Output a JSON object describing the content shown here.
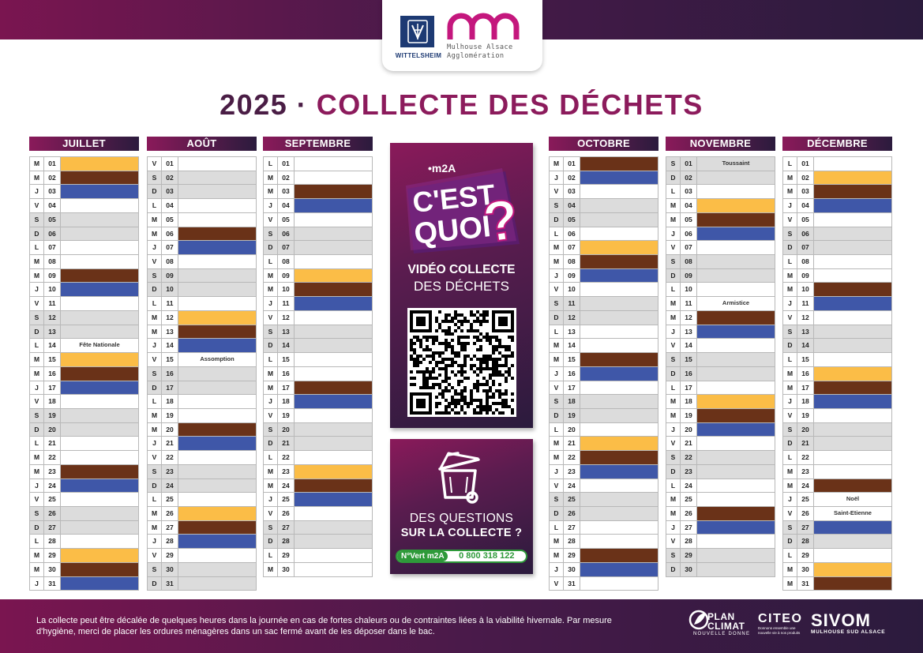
{
  "header": {
    "wittelsheim": "WITTELSHEIM",
    "m2a_line1": "Mulhouse Alsace",
    "m2a_line2": "Agglomération"
  },
  "title": {
    "year": "2025",
    "separator": "·",
    "main": "COLLECTE DES DÉCHETS"
  },
  "legend_colors": {
    "yellow": "#fbbd47",
    "brown": "#6a3218",
    "blue": "#3f57a8",
    "weekend": "#dcdcdc"
  },
  "months": [
    {
      "name": "JUILLET",
      "days": [
        {
          "d": "M",
          "n": "01",
          "c": "y"
        },
        {
          "d": "M",
          "n": "02",
          "c": "b"
        },
        {
          "d": "J",
          "n": "03",
          "c": "u"
        },
        {
          "d": "V",
          "n": "04"
        },
        {
          "d": "S",
          "n": "05"
        },
        {
          "d": "D",
          "n": "06"
        },
        {
          "d": "L",
          "n": "07"
        },
        {
          "d": "M",
          "n": "08"
        },
        {
          "d": "M",
          "n": "09",
          "c": "b"
        },
        {
          "d": "J",
          "n": "10",
          "c": "u"
        },
        {
          "d": "V",
          "n": "11"
        },
        {
          "d": "S",
          "n": "12"
        },
        {
          "d": "D",
          "n": "13"
        },
        {
          "d": "L",
          "n": "14",
          "t": "Fête Nationale"
        },
        {
          "d": "M",
          "n": "15",
          "c": "y"
        },
        {
          "d": "M",
          "n": "16",
          "c": "b"
        },
        {
          "d": "J",
          "n": "17",
          "c": "u"
        },
        {
          "d": "V",
          "n": "18"
        },
        {
          "d": "S",
          "n": "19"
        },
        {
          "d": "D",
          "n": "20"
        },
        {
          "d": "L",
          "n": "21"
        },
        {
          "d": "M",
          "n": "22"
        },
        {
          "d": "M",
          "n": "23",
          "c": "b"
        },
        {
          "d": "J",
          "n": "24",
          "c": "u"
        },
        {
          "d": "V",
          "n": "25"
        },
        {
          "d": "S",
          "n": "26"
        },
        {
          "d": "D",
          "n": "27"
        },
        {
          "d": "L",
          "n": "28"
        },
        {
          "d": "M",
          "n": "29",
          "c": "y"
        },
        {
          "d": "M",
          "n": "30",
          "c": "b"
        },
        {
          "d": "J",
          "n": "31",
          "c": "u"
        }
      ]
    },
    {
      "name": "AOÛT",
      "days": [
        {
          "d": "V",
          "n": "01"
        },
        {
          "d": "S",
          "n": "02"
        },
        {
          "d": "D",
          "n": "03"
        },
        {
          "d": "L",
          "n": "04"
        },
        {
          "d": "M",
          "n": "05"
        },
        {
          "d": "M",
          "n": "06",
          "c": "b"
        },
        {
          "d": "J",
          "n": "07",
          "c": "u"
        },
        {
          "d": "V",
          "n": "08"
        },
        {
          "d": "S",
          "n": "09"
        },
        {
          "d": "D",
          "n": "10"
        },
        {
          "d": "L",
          "n": "11"
        },
        {
          "d": "M",
          "n": "12",
          "c": "y"
        },
        {
          "d": "M",
          "n": "13",
          "c": "b"
        },
        {
          "d": "J",
          "n": "14",
          "c": "u"
        },
        {
          "d": "V",
          "n": "15",
          "t": "Assomption"
        },
        {
          "d": "S",
          "n": "16"
        },
        {
          "d": "D",
          "n": "17"
        },
        {
          "d": "L",
          "n": "18"
        },
        {
          "d": "M",
          "n": "19"
        },
        {
          "d": "M",
          "n": "20",
          "c": "b"
        },
        {
          "d": "J",
          "n": "21",
          "c": "u"
        },
        {
          "d": "V",
          "n": "22"
        },
        {
          "d": "S",
          "n": "23"
        },
        {
          "d": "D",
          "n": "24"
        },
        {
          "d": "L",
          "n": "25"
        },
        {
          "d": "M",
          "n": "26",
          "c": "y"
        },
        {
          "d": "M",
          "n": "27",
          "c": "b"
        },
        {
          "d": "J",
          "n": "28",
          "c": "u"
        },
        {
          "d": "V",
          "n": "29"
        },
        {
          "d": "S",
          "n": "30"
        },
        {
          "d": "D",
          "n": "31"
        }
      ]
    },
    {
      "name": "SEPTEMBRE",
      "days": [
        {
          "d": "L",
          "n": "01"
        },
        {
          "d": "M",
          "n": "02"
        },
        {
          "d": "M",
          "n": "03",
          "c": "b"
        },
        {
          "d": "J",
          "n": "04",
          "c": "u"
        },
        {
          "d": "V",
          "n": "05"
        },
        {
          "d": "S",
          "n": "06"
        },
        {
          "d": "D",
          "n": "07"
        },
        {
          "d": "L",
          "n": "08"
        },
        {
          "d": "M",
          "n": "09",
          "c": "y"
        },
        {
          "d": "M",
          "n": "10",
          "c": "b"
        },
        {
          "d": "J",
          "n": "11",
          "c": "u"
        },
        {
          "d": "V",
          "n": "12"
        },
        {
          "d": "S",
          "n": "13"
        },
        {
          "d": "D",
          "n": "14"
        },
        {
          "d": "L",
          "n": "15"
        },
        {
          "d": "M",
          "n": "16"
        },
        {
          "d": "M",
          "n": "17",
          "c": "b"
        },
        {
          "d": "J",
          "n": "18",
          "c": "u"
        },
        {
          "d": "V",
          "n": "19"
        },
        {
          "d": "S",
          "n": "20"
        },
        {
          "d": "D",
          "n": "21"
        },
        {
          "d": "L",
          "n": "22"
        },
        {
          "d": "M",
          "n": "23",
          "c": "y"
        },
        {
          "d": "M",
          "n": "24",
          "c": "b"
        },
        {
          "d": "J",
          "n": "25",
          "c": "u"
        },
        {
          "d": "V",
          "n": "26"
        },
        {
          "d": "S",
          "n": "27"
        },
        {
          "d": "D",
          "n": "28"
        },
        {
          "d": "L",
          "n": "29"
        },
        {
          "d": "M",
          "n": "30"
        }
      ]
    },
    {
      "name": "OCTOBRE",
      "days": [
        {
          "d": "M",
          "n": "01",
          "c": "b"
        },
        {
          "d": "J",
          "n": "02",
          "c": "u"
        },
        {
          "d": "V",
          "n": "03"
        },
        {
          "d": "S",
          "n": "04"
        },
        {
          "d": "D",
          "n": "05"
        },
        {
          "d": "L",
          "n": "06"
        },
        {
          "d": "M",
          "n": "07",
          "c": "y"
        },
        {
          "d": "M",
          "n": "08",
          "c": "b"
        },
        {
          "d": "J",
          "n": "09",
          "c": "u"
        },
        {
          "d": "V",
          "n": "10"
        },
        {
          "d": "S",
          "n": "11"
        },
        {
          "d": "D",
          "n": "12"
        },
        {
          "d": "L",
          "n": "13"
        },
        {
          "d": "M",
          "n": "14"
        },
        {
          "d": "M",
          "n": "15",
          "c": "b"
        },
        {
          "d": "J",
          "n": "16",
          "c": "u"
        },
        {
          "d": "V",
          "n": "17"
        },
        {
          "d": "S",
          "n": "18"
        },
        {
          "d": "D",
          "n": "19"
        },
        {
          "d": "L",
          "n": "20"
        },
        {
          "d": "M",
          "n": "21",
          "c": "y"
        },
        {
          "d": "M",
          "n": "22",
          "c": "b"
        },
        {
          "d": "J",
          "n": "23",
          "c": "u"
        },
        {
          "d": "V",
          "n": "24"
        },
        {
          "d": "S",
          "n": "25"
        },
        {
          "d": "D",
          "n": "26"
        },
        {
          "d": "L",
          "n": "27"
        },
        {
          "d": "M",
          "n": "28"
        },
        {
          "d": "M",
          "n": "29",
          "c": "b"
        },
        {
          "d": "J",
          "n": "30",
          "c": "u"
        },
        {
          "d": "V",
          "n": "31"
        }
      ]
    },
    {
      "name": "NOVEMBRE",
      "days": [
        {
          "d": "S",
          "n": "01",
          "t": "Toussaint"
        },
        {
          "d": "D",
          "n": "02"
        },
        {
          "d": "L",
          "n": "03"
        },
        {
          "d": "M",
          "n": "04",
          "c": "y"
        },
        {
          "d": "M",
          "n": "05",
          "c": "b"
        },
        {
          "d": "J",
          "n": "06",
          "c": "u"
        },
        {
          "d": "V",
          "n": "07"
        },
        {
          "d": "S",
          "n": "08"
        },
        {
          "d": "D",
          "n": "09"
        },
        {
          "d": "L",
          "n": "10"
        },
        {
          "d": "M",
          "n": "11",
          "t": "Armistice"
        },
        {
          "d": "M",
          "n": "12",
          "c": "b"
        },
        {
          "d": "J",
          "n": "13",
          "c": "u"
        },
        {
          "d": "V",
          "n": "14"
        },
        {
          "d": "S",
          "n": "15"
        },
        {
          "d": "D",
          "n": "16"
        },
        {
          "d": "L",
          "n": "17"
        },
        {
          "d": "M",
          "n": "18",
          "c": "y"
        },
        {
          "d": "M",
          "n": "19",
          "c": "b"
        },
        {
          "d": "J",
          "n": "20",
          "c": "u"
        },
        {
          "d": "V",
          "n": "21"
        },
        {
          "d": "S",
          "n": "22"
        },
        {
          "d": "D",
          "n": "23"
        },
        {
          "d": "L",
          "n": "24"
        },
        {
          "d": "M",
          "n": "25"
        },
        {
          "d": "M",
          "n": "26",
          "c": "b"
        },
        {
          "d": "J",
          "n": "27",
          "c": "u"
        },
        {
          "d": "V",
          "n": "28"
        },
        {
          "d": "S",
          "n": "29"
        },
        {
          "d": "D",
          "n": "30"
        }
      ]
    },
    {
      "name": "DÉCEMBRE",
      "days": [
        {
          "d": "L",
          "n": "01"
        },
        {
          "d": "M",
          "n": "02",
          "c": "y"
        },
        {
          "d": "M",
          "n": "03",
          "c": "b"
        },
        {
          "d": "J",
          "n": "04",
          "c": "u"
        },
        {
          "d": "V",
          "n": "05"
        },
        {
          "d": "S",
          "n": "06"
        },
        {
          "d": "D",
          "n": "07"
        },
        {
          "d": "L",
          "n": "08"
        },
        {
          "d": "M",
          "n": "09"
        },
        {
          "d": "M",
          "n": "10",
          "c": "b"
        },
        {
          "d": "J",
          "n": "11",
          "c": "u"
        },
        {
          "d": "V",
          "n": "12"
        },
        {
          "d": "S",
          "n": "13"
        },
        {
          "d": "D",
          "n": "14"
        },
        {
          "d": "L",
          "n": "15"
        },
        {
          "d": "M",
          "n": "16",
          "c": "y"
        },
        {
          "d": "M",
          "n": "17",
          "c": "b"
        },
        {
          "d": "J",
          "n": "18",
          "c": "u"
        },
        {
          "d": "V",
          "n": "19"
        },
        {
          "d": "S",
          "n": "20"
        },
        {
          "d": "D",
          "n": "21"
        },
        {
          "d": "L",
          "n": "22"
        },
        {
          "d": "M",
          "n": "23"
        },
        {
          "d": "M",
          "n": "24",
          "c": "b"
        },
        {
          "d": "J",
          "n": "25",
          "t": "Noël"
        },
        {
          "d": "V",
          "n": "26",
          "t": "Saint-Etienne"
        },
        {
          "d": "S",
          "n": "27",
          "c": "u"
        },
        {
          "d": "D",
          "n": "28"
        },
        {
          "d": "L",
          "n": "29"
        },
        {
          "d": "M",
          "n": "30",
          "c": "y"
        },
        {
          "d": "M",
          "n": "31",
          "c": "b"
        }
      ]
    }
  ],
  "promo": {
    "brand": "•m2A",
    "slogan_line1": "C'EST",
    "slogan_line2": "QUOI",
    "slogan_mark": "?",
    "video_line1": "VIDÉO COLLECTE",
    "video_line2": "DES DÉCHETS",
    "questions_line1": "DES QUESTIONS",
    "questions_line2": "SUR LA COLLECTE ?",
    "nvert_label": "N°Vert m2A",
    "phone": "0 800 318 122"
  },
  "footer": {
    "notice": "La collecte peut être décalée de quelques heures dans la journée en cas de fortes chaleurs ou de contraintes liées à la viabilité hivernale. Par mesure d'hygiène, merci de placer les ordures ménagères dans un sac fermé avant de les déposer dans le bac.",
    "plan_climat_1": "PLAN",
    "plan_climat_2": "CLIMAT",
    "plan_climat_3": "NOUVELLE DONNE",
    "citeo": "CITEO",
    "citeo_tag": "Donnons ensemble une nouvelle vie à nos produits",
    "sivom": "SIVOM",
    "sivom_sub": "MULHOUSE SUD ALSACE"
  }
}
